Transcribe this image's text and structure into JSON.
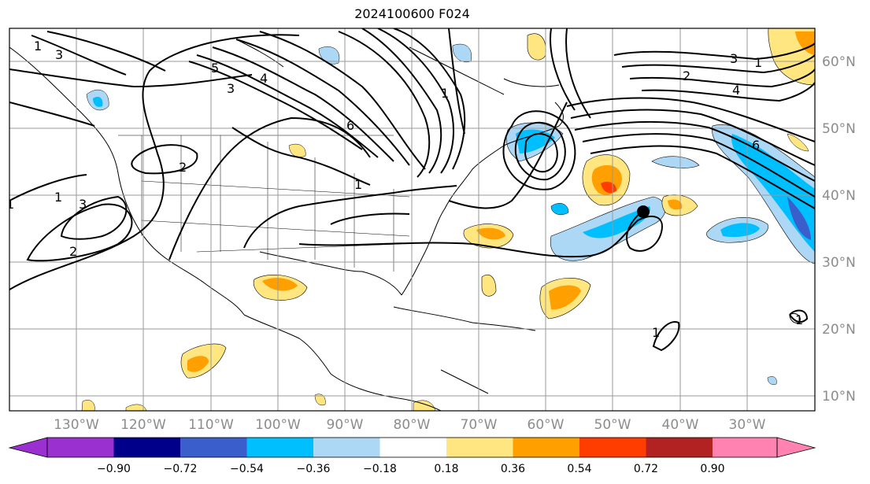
{
  "title": "2024100600 F024",
  "map": {
    "lon_labels": [
      "130°W",
      "120°W",
      "110°W",
      "100°W",
      "90°W",
      "80°W",
      "70°W",
      "60°W",
      "50°W",
      "40°W",
      "30°W"
    ],
    "lat_labels": [
      "60°N",
      "50°N",
      "40°N",
      "30°N",
      "20°N",
      "10°N"
    ],
    "contour_labels": [
      "1",
      "2",
      "3",
      "4",
      "5",
      "6",
      "1",
      "2",
      "3",
      "4",
      "1",
      "2",
      "3",
      "1",
      "2",
      "3",
      "4",
      "6",
      "1",
      "1",
      "1"
    ],
    "colors": {
      "frame": "#000000",
      "grid": "#9a9a9a",
      "land_line": "#000000"
    }
  },
  "colorbar": {
    "tick_labels": [
      "−0.90",
      "−0.72",
      "−0.54",
      "−0.36",
      "−0.18",
      "0.18",
      "0.36",
      "0.54",
      "0.72",
      "0.90"
    ],
    "colors": [
      "#9b30d0",
      "#00008b",
      "#3a5fcd",
      "#00bfff",
      "#add8f5",
      "#ffffff",
      "#ffe680",
      "#ff9f00",
      "#ff3d00",
      "#b22222",
      "#ff82b0"
    ]
  }
}
